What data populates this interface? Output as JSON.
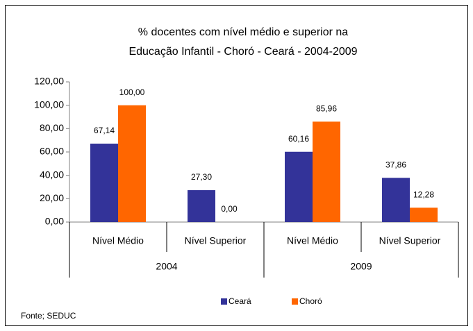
{
  "chart_data": {
    "type": "bar",
    "title": [
      "% docentes com nível médio e superior na",
      "Educação Infantil - Choró  -  Ceará - 2004-2009"
    ],
    "categories": [
      "Nível Médio",
      "Nível Superior",
      "Nível Médio",
      "Nível Superior"
    ],
    "groups": [
      "2004",
      "2009"
    ],
    "series": [
      {
        "name": "Ceará",
        "color": "#333399",
        "values": [
          67.14,
          27.3,
          60.16,
          37.86
        ],
        "value_labels": [
          "67,14",
          "27,30",
          "60,16",
          "37,86"
        ]
      },
      {
        "name": "Choró",
        "color": "#ff6600",
        "values": [
          100,
          0,
          85.96,
          12.28
        ],
        "value_labels": [
          "100,00",
          "0,00",
          "85,96",
          "12,28"
        ]
      }
    ],
    "ylim": [
      0,
      120
    ],
    "yticks": [
      {
        "value": 0,
        "label": "0,00"
      },
      {
        "value": 20,
        "label": "20,00"
      },
      {
        "value": 40,
        "label": "40,00"
      },
      {
        "value": 60,
        "label": "60,00"
      },
      {
        "value": 80,
        "label": "80,00"
      },
      {
        "value": 100,
        "label": "100,00"
      },
      {
        "value": 120,
        "label": "120,00"
      }
    ],
    "grid": false,
    "legend": "bottom",
    "source": "Fonte; SEDUC"
  }
}
